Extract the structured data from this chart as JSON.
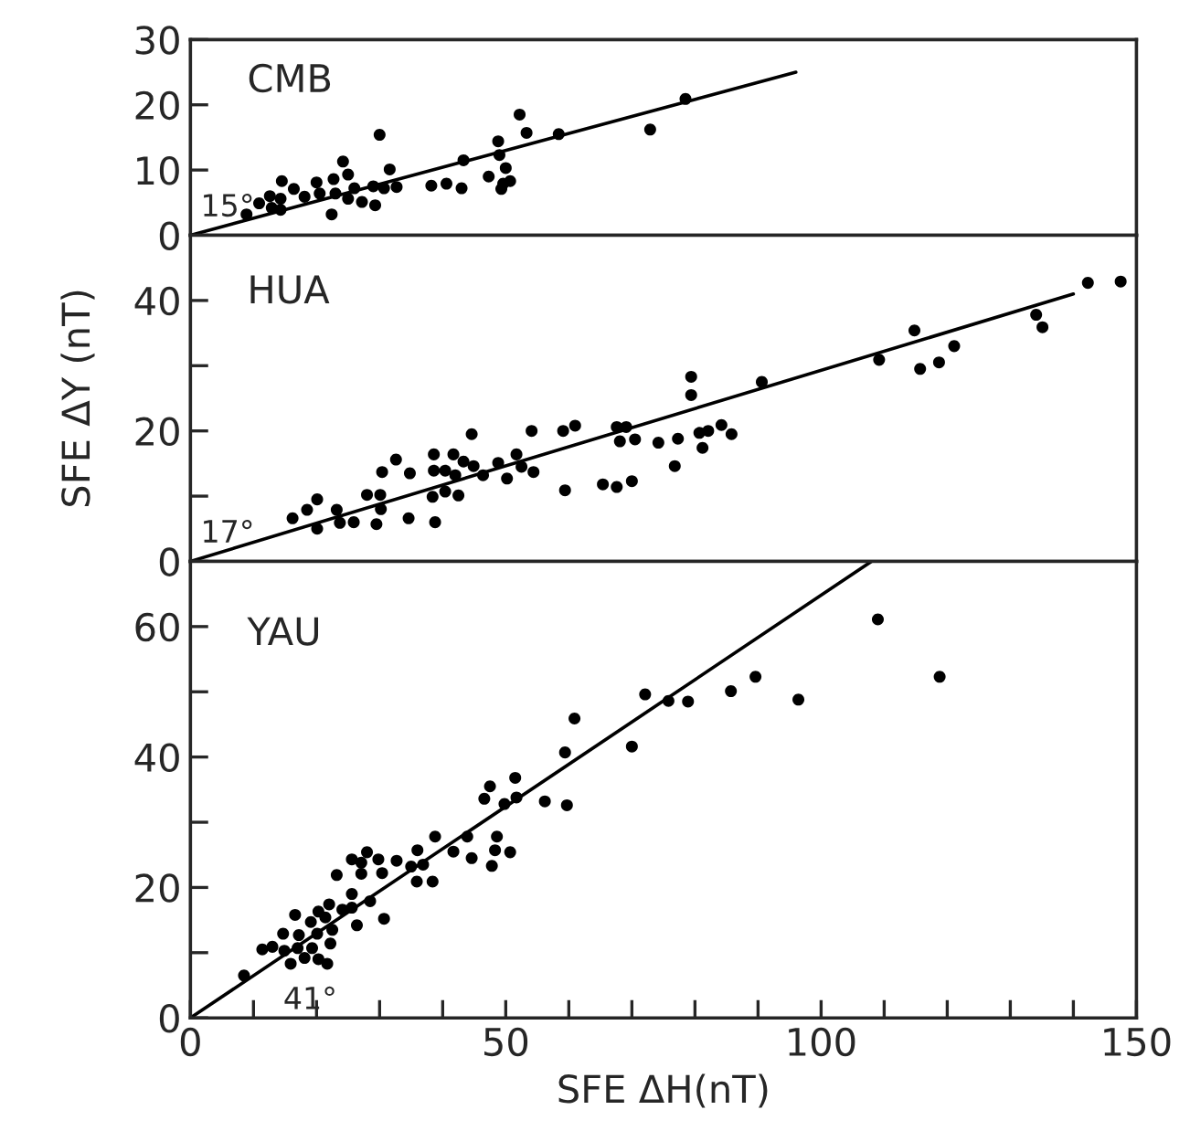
{
  "chart_data": [
    {
      "type": "scatter",
      "title": "CMB",
      "xlim": [
        0,
        150
      ],
      "ylim": [
        0,
        30
      ],
      "yticks": [
        0,
        10,
        20,
        30
      ],
      "tick_labels": "y",
      "grid": false,
      "legend": false,
      "series": [
        {
          "marker": "circle",
          "color": "#000000",
          "x": [
            8.9,
            10.9,
            12.6,
            12.9,
            14.3,
            14.5,
            14.3,
            16.4,
            18.1,
            20.0,
            20.5,
            22.4,
            22.7,
            23.0,
            24.2,
            25.0,
            25.0,
            26.0,
            27.2,
            29.0,
            29.3,
            30.0,
            30.7,
            31.6,
            32.7,
            38.2,
            40.6,
            43.0,
            43.3,
            47.3,
            48.8,
            49.0,
            49.3,
            50.0,
            49.6,
            50.7,
            52.2,
            53.3,
            58.4,
            72.9,
            78.5
          ],
          "values": [
            3.2,
            4.9,
            6.0,
            4.2,
            5.6,
            8.3,
            3.9,
            7.1,
            5.9,
            8.1,
            6.4,
            3.2,
            8.6,
            6.4,
            11.3,
            9.3,
            5.6,
            7.2,
            5.1,
            7.5,
            4.6,
            15.4,
            7.2,
            10.1,
            7.4,
            7.6,
            7.9,
            7.2,
            11.5,
            9.0,
            14.4,
            12.3,
            7.1,
            10.3,
            7.9,
            8.3,
            18.5,
            15.7,
            15.5,
            16.2,
            20.9
          ]
        },
        {
          "type": "line",
          "marker": "none",
          "color": "#000000",
          "x": [
            0,
            96
          ],
          "values": [
            0,
            25
          ]
        }
      ],
      "annotations": [
        "15°"
      ]
    },
    {
      "type": "scatter",
      "title": "HUA",
      "ylabel": "SFE ΔY (nT)",
      "xlim": [
        0,
        150
      ],
      "ylim": [
        0,
        50
      ],
      "yticks": [
        0,
        {
          "value": 10,
          "label": null
        },
        20,
        {
          "value": 30,
          "label": null
        },
        40
      ],
      "tick_labels": "y",
      "grid": false,
      "legend": false,
      "series": [
        {
          "marker": "circle",
          "color": "#000000",
          "x": [
            16.2,
            18.5,
            20.1,
            20.1,
            23.2,
            23.7,
            25.9,
            28.0,
            30.1,
            30.2,
            29.5,
            30.4,
            32.6,
            34.8,
            34.6,
            38.6,
            38.6,
            38.4,
            38.8,
            40.4,
            40.4,
            41.7,
            42.0,
            42.5,
            43.3,
            44.6,
            44.9,
            46.4,
            48.8,
            50.2,
            51.7,
            52.5,
            54.4,
            54.1,
            59.1,
            61.0,
            59.4,
            65.4,
            67.6,
            69.1,
            68.1,
            70.5,
            67.6,
            70.0,
            74.2,
            77.3,
            79.4,
            79.4,
            76.8,
            80.7,
            81.2,
            82.1,
            84.2,
            85.8,
            90.6,
            109.2,
            114.8,
            115.7,
            118.7,
            121.1,
            134.1,
            135.1,
            142.3,
            147.5
          ],
          "values": [
            6.6,
            7.9,
            9.5,
            5.0,
            7.9,
            5.9,
            6.0,
            10.2,
            10.2,
            8.0,
            5.7,
            13.7,
            15.6,
            13.5,
            6.6,
            16.4,
            13.9,
            9.9,
            6.0,
            13.9,
            10.7,
            16.4,
            13.2,
            10.1,
            15.3,
            19.5,
            14.6,
            13.2,
            15.1,
            12.7,
            16.4,
            14.5,
            13.7,
            20.0,
            20.0,
            20.8,
            10.9,
            11.8,
            20.6,
            20.6,
            18.4,
            18.7,
            11.4,
            12.3,
            18.2,
            18.8,
            28.3,
            25.5,
            14.6,
            19.7,
            17.4,
            20.0,
            20.9,
            19.5,
            27.5,
            30.9,
            35.4,
            29.5,
            30.5,
            33.0,
            37.8,
            35.9,
            42.7,
            42.9
          ]
        },
        {
          "type": "line",
          "marker": "none",
          "color": "#000000",
          "x": [
            0,
            140
          ],
          "values": [
            0,
            41
          ]
        }
      ],
      "annotations": [
        "17°"
      ]
    },
    {
      "type": "scatter",
      "title": "YAU",
      "xlabel": "SFE ΔH(nT)",
      "xlim": [
        0,
        150
      ],
      "ylim": [
        0,
        70
      ],
      "yticks": [
        0,
        {
          "value": 10,
          "label": null
        },
        20,
        {
          "value": 30,
          "label": null
        },
        40,
        {
          "value": 50,
          "label": null
        },
        60
      ],
      "xticks": [
        0,
        {
          "value": 10,
          "label": null
        },
        {
          "value": 20,
          "label": null
        },
        {
          "value": 30,
          "label": null
        },
        {
          "value": 40,
          "label": null
        },
        50,
        {
          "value": 60,
          "label": null
        },
        {
          "value": 70,
          "label": null
        },
        {
          "value": 80,
          "label": null
        },
        {
          "value": 90,
          "label": null
        },
        100,
        {
          "value": 110,
          "label": null
        },
        {
          "value": 120,
          "label": null
        },
        {
          "value": 130,
          "label": null
        },
        {
          "value": 140,
          "label": null
        },
        150
      ],
      "grid": false,
      "legend": false,
      "series": [
        {
          "marker": "circle",
          "color": "#000000",
          "x": [
            8.5,
            11.4,
            13.0,
            14.9,
            15.9,
            14.7,
            16.6,
            17.2,
            17.0,
            18.1,
            19.1,
            19.3,
            20.1,
            20.3,
            20.3,
            21.4,
            21.7,
            22.0,
            22.2,
            22.5,
            23.2,
            24.1,
            25.6,
            25.6,
            25.6,
            26.4,
            27.1,
            27.1,
            28.0,
            28.5,
            29.8,
            30.4,
            30.7,
            32.7,
            35.0,
            36.0,
            35.9,
            36.9,
            38.4,
            38.8,
            41.7,
            43.9,
            44.6,
            46.6,
            47.5,
            47.8,
            48.3,
            48.6,
            49.8,
            50.7,
            51.5,
            51.7,
            56.2,
            59.4,
            59.7,
            60.9,
            70.0,
            72.1,
            75.8,
            78.9,
            85.7,
            89.6,
            96.4,
            109.0,
            118.8
          ],
          "values": [
            6.5,
            10.5,
            10.9,
            10.3,
            8.3,
            12.9,
            15.8,
            12.7,
            10.7,
            9.2,
            14.7,
            10.7,
            12.9,
            16.3,
            9.0,
            15.4,
            8.3,
            17.4,
            11.4,
            13.5,
            21.9,
            16.6,
            24.3,
            19.0,
            16.9,
            14.2,
            23.8,
            22.1,
            25.4,
            17.9,
            24.3,
            22.2,
            15.2,
            24.1,
            23.2,
            25.7,
            20.9,
            23.5,
            20.9,
            27.8,
            25.5,
            27.8,
            24.5,
            33.6,
            35.5,
            23.3,
            25.7,
            27.8,
            32.8,
            25.4,
            36.8,
            33.8,
            33.2,
            40.7,
            32.6,
            45.9,
            41.6,
            49.6,
            48.6,
            48.5,
            50.1,
            52.3,
            48.8,
            61.1,
            52.3
          ]
        },
        {
          "type": "line",
          "marker": "none",
          "color": "#000000",
          "x": [
            0,
            108
          ],
          "values": [
            0,
            70
          ]
        }
      ],
      "annotations": [
        "41°"
      ]
    }
  ]
}
